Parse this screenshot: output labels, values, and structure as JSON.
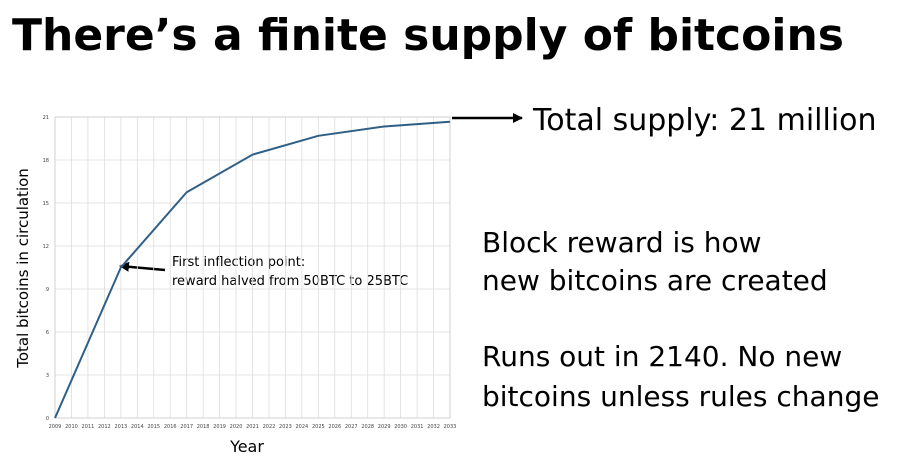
{
  "title": "There’s a finite supply of bitcoins",
  "notes": {
    "supply": "Total supply: 21 million",
    "reward": [
      "Block reward is how",
      "new bitcoins are created"
    ],
    "runout": [
      "Runs out in 2140. No new",
      "bitcoins unless rules change"
    ]
  },
  "chart_data": {
    "type": "line",
    "x_label": "Year",
    "y_label": "Total bitcoins in circulation",
    "x": [
      2009,
      2013,
      2017,
      2021,
      2025,
      2029,
      2033
    ],
    "values": [
      0,
      10.5,
      15.75,
      18.375,
      19.6875,
      20.34,
      20.67
    ],
    "color": "#2f5f86",
    "xlim": [
      2009,
      2033
    ],
    "xticks": [
      2009,
      2010,
      2011,
      2012,
      2013,
      2014,
      2015,
      2016,
      2017,
      2018,
      2019,
      2020,
      2021,
      2022,
      2023,
      2024,
      2025,
      2026,
      2027,
      2028,
      2029,
      2030,
      2031,
      2032,
      2033
    ],
    "ylim": [
      0,
      21
    ],
    "yticks": [
      0,
      3,
      6,
      9,
      12,
      15,
      18,
      21
    ],
    "grid": true,
    "annotations": [
      "First inflection point:",
      "reward halved from 50BTC to 25BTC"
    ]
  }
}
